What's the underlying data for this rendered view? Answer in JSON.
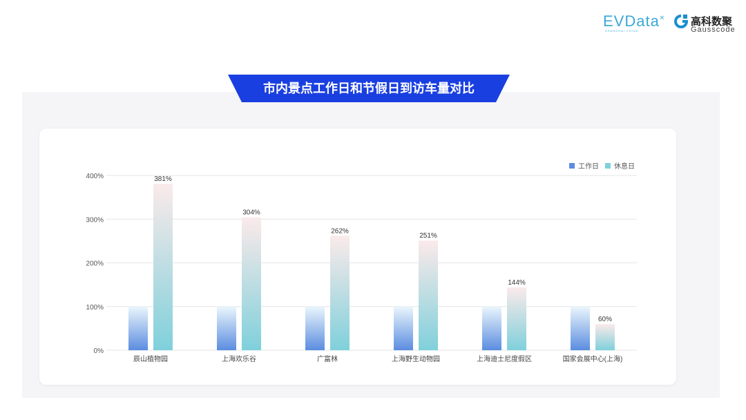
{
  "logos": {
    "evdata": "EVData",
    "evdata_sub": "SHANGHAI CHINA",
    "gauss_cn": "高科数聚",
    "gauss_en": "Gausscode"
  },
  "title": "市内景点工作日和节假日到访车量对比",
  "colors": {
    "banner": "#1a3fe0",
    "workday": "#5b8de0",
    "rest": "#7fd0db"
  },
  "chart_data": {
    "type": "bar",
    "categories": [
      "辰山植物园",
      "上海欢乐谷",
      "广富林",
      "上海野生动物园",
      "上海迪士尼度假区",
      "国家会展中心(上海)"
    ],
    "series": [
      {
        "name": "工作日",
        "values": [
          100,
          100,
          100,
          100,
          100,
          100
        ]
      },
      {
        "name": "休息日",
        "values": [
          381,
          304,
          262,
          251,
          144,
          60
        ],
        "labels": [
          "381%",
          "304%",
          "262%",
          "251%",
          "144%",
          "60%"
        ]
      }
    ],
    "yticks": [
      "0%",
      "100%",
      "200%",
      "300%",
      "400%"
    ],
    "ylim": [
      0,
      400
    ],
    "grid": true,
    "legend": "top-right"
  }
}
